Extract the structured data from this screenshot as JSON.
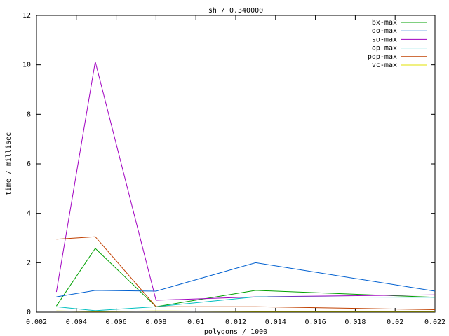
{
  "chart_data": {
    "type": "line",
    "title": "sh / 0.340000",
    "x_label": "polygons / 1000",
    "y_label": "time / millisec",
    "x": [
      0.003,
      0.00495,
      0.008,
      0.013,
      0.022
    ],
    "series": [
      {
        "name": "bx-max",
        "color": "#00a000",
        "values": [
          0.25,
          2.58,
          0.22,
          0.88,
          0.6
        ]
      },
      {
        "name": "do-max",
        "color": "#0060d0",
        "values": [
          0.62,
          0.88,
          0.85,
          2.0,
          0.85
        ]
      },
      {
        "name": "so-max",
        "color": "#a000c0",
        "values": [
          0.82,
          10.13,
          0.48,
          0.62,
          0.7
        ]
      },
      {
        "name": "op-max",
        "color": "#00c0c0",
        "values": [
          0.22,
          0.06,
          0.22,
          0.62,
          0.6
        ]
      },
      {
        "name": "pqp-max",
        "color": "#c04000",
        "values": [
          2.95,
          3.05,
          0.22,
          0.22,
          0.1
        ]
      },
      {
        "name": "vc-max",
        "color": "#e0e000",
        "values": [
          0.05,
          0.03,
          0.05,
          0.03,
          0.03
        ]
      }
    ],
    "xlim": [
      0.002,
      0.022
    ],
    "xticks": [
      0.002,
      0.004,
      0.006,
      0.008,
      0.01,
      0.012,
      0.014,
      0.016,
      0.018,
      0.02,
      0.022
    ],
    "ylim": [
      0,
      12
    ],
    "yticks": [
      0,
      2,
      4,
      6,
      8,
      10,
      12
    ],
    "grid": false,
    "legend": "top-right"
  }
}
